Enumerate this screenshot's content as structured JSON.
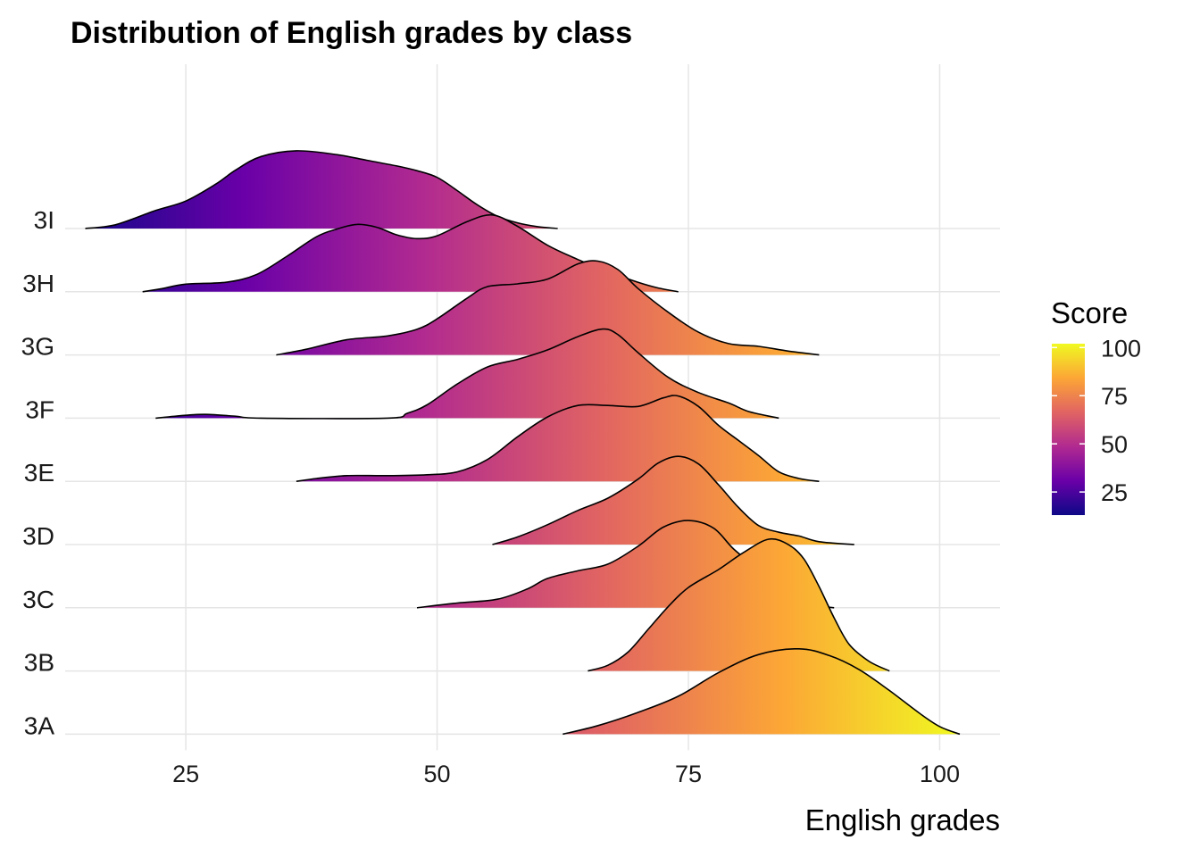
{
  "chart_data": {
    "type": "ridgeline",
    "title": "Distribution of English grades by class",
    "xlabel": "English grades",
    "ylabel": "",
    "xlim": [
      13,
      106
    ],
    "x_ticks": [
      25,
      50,
      75,
      100
    ],
    "x_tick_labels": [
      "25",
      "50",
      "75",
      "100"
    ],
    "categories": [
      "3I",
      "3H",
      "3G",
      "3F",
      "3E",
      "3D",
      "3C",
      "3B",
      "3A"
    ],
    "grid": true,
    "legend": {
      "title": "Score",
      "position": "right",
      "ticks": [
        25,
        50,
        75,
        100
      ],
      "tick_labels": [
        "25",
        "50",
        "75",
        "100"
      ],
      "range": [
        13,
        102
      ]
    },
    "color_scale": {
      "name": "plasma",
      "min": 13,
      "max": 102,
      "stops": [
        "#0d0887",
        "#6a00a8",
        "#b12a90",
        "#e16462",
        "#fca636",
        "#f0f921"
      ]
    },
    "ridge_height_scale": 3.9,
    "series": [
      {
        "name": "3I",
        "points": [
          [
            15.0,
            0.0
          ],
          [
            18.0,
            0.04
          ],
          [
            22.0,
            0.19
          ],
          [
            25.0,
            0.29
          ],
          [
            28.0,
            0.47
          ],
          [
            30.0,
            0.62
          ],
          [
            32.5,
            0.76
          ],
          [
            36.0,
            0.82
          ],
          [
            40.0,
            0.78
          ],
          [
            43.0,
            0.72
          ],
          [
            46.0,
            0.66
          ],
          [
            48.0,
            0.61
          ],
          [
            50.0,
            0.54
          ],
          [
            52.0,
            0.4
          ],
          [
            54.0,
            0.25
          ],
          [
            56.0,
            0.13
          ],
          [
            58.0,
            0.06
          ],
          [
            60.0,
            0.02
          ],
          [
            62.0,
            0.0
          ]
        ]
      },
      {
        "name": "3H",
        "points": [
          [
            20.7,
            0.0
          ],
          [
            22.5,
            0.03
          ],
          [
            25.0,
            0.08
          ],
          [
            29.0,
            0.1
          ],
          [
            32.0,
            0.18
          ],
          [
            35.0,
            0.37
          ],
          [
            38.0,
            0.58
          ],
          [
            40.0,
            0.66
          ],
          [
            42.0,
            0.71
          ],
          [
            44.0,
            0.68
          ],
          [
            46.0,
            0.6
          ],
          [
            48.0,
            0.56
          ],
          [
            50.0,
            0.59
          ],
          [
            53.0,
            0.74
          ],
          [
            55.5,
            0.81
          ],
          [
            58.0,
            0.69
          ],
          [
            61.0,
            0.49
          ],
          [
            64.0,
            0.34
          ],
          [
            67.0,
            0.21
          ],
          [
            70.0,
            0.1
          ],
          [
            72.0,
            0.04
          ],
          [
            74.0,
            0.0
          ]
        ]
      },
      {
        "name": "3G",
        "points": [
          [
            34.0,
            0.0
          ],
          [
            37.0,
            0.06
          ],
          [
            41.0,
            0.16
          ],
          [
            45.0,
            0.2
          ],
          [
            48.0,
            0.27
          ],
          [
            50.0,
            0.38
          ],
          [
            53.0,
            0.6
          ],
          [
            55.0,
            0.72
          ],
          [
            58.0,
            0.75
          ],
          [
            61.0,
            0.8
          ],
          [
            64.0,
            0.96
          ],
          [
            66.0,
            0.99
          ],
          [
            68.0,
            0.9
          ],
          [
            70.0,
            0.7
          ],
          [
            73.0,
            0.45
          ],
          [
            76.0,
            0.24
          ],
          [
            79.0,
            0.12
          ],
          [
            82.0,
            0.09
          ],
          [
            85.0,
            0.04
          ],
          [
            88.0,
            0.0
          ]
        ]
      },
      {
        "name": "3F",
        "points": [
          [
            22.0,
            0.0
          ],
          [
            25.0,
            0.03
          ],
          [
            27.0,
            0.04
          ],
          [
            30.0,
            0.02
          ],
          [
            32.5,
            0.0
          ],
          [
            45.0,
            0.0
          ],
          [
            47.0,
            0.05
          ],
          [
            49.0,
            0.14
          ],
          [
            52.0,
            0.36
          ],
          [
            55.0,
            0.54
          ],
          [
            58.0,
            0.62
          ],
          [
            61.0,
            0.72
          ],
          [
            64.0,
            0.86
          ],
          [
            66.5,
            0.94
          ],
          [
            68.0,
            0.88
          ],
          [
            70.0,
            0.69
          ],
          [
            73.0,
            0.43
          ],
          [
            76.0,
            0.27
          ],
          [
            79.0,
            0.16
          ],
          [
            81.0,
            0.07
          ],
          [
            84.0,
            0.0
          ]
        ]
      },
      {
        "name": "3E",
        "points": [
          [
            36.0,
            0.0
          ],
          [
            38.0,
            0.03
          ],
          [
            41.0,
            0.06
          ],
          [
            45.0,
            0.06
          ],
          [
            49.0,
            0.07
          ],
          [
            52.0,
            0.1
          ],
          [
            55.0,
            0.23
          ],
          [
            58.0,
            0.47
          ],
          [
            61.0,
            0.68
          ],
          [
            64.0,
            0.8
          ],
          [
            67.0,
            0.8
          ],
          [
            70.0,
            0.79
          ],
          [
            72.5,
            0.88
          ],
          [
            74.0,
            0.9
          ],
          [
            76.0,
            0.79
          ],
          [
            78.0,
            0.59
          ],
          [
            80.0,
            0.43
          ],
          [
            82.0,
            0.27
          ],
          [
            84.0,
            0.1
          ],
          [
            86.0,
            0.03
          ],
          [
            88.0,
            0.0
          ]
        ]
      },
      {
        "name": "3D",
        "points": [
          [
            55.5,
            0.0
          ],
          [
            58.0,
            0.08
          ],
          [
            61.0,
            0.21
          ],
          [
            64.0,
            0.36
          ],
          [
            67.0,
            0.49
          ],
          [
            70.0,
            0.69
          ],
          [
            72.0,
            0.86
          ],
          [
            74.0,
            0.93
          ],
          [
            76.0,
            0.85
          ],
          [
            78.0,
            0.63
          ],
          [
            80.0,
            0.39
          ],
          [
            82.0,
            0.2
          ],
          [
            84.0,
            0.13
          ],
          [
            86.0,
            0.09
          ],
          [
            88.0,
            0.03
          ],
          [
            91.5,
            0.0
          ]
        ]
      },
      {
        "name": "3C",
        "points": [
          [
            48.0,
            0.0
          ],
          [
            52.0,
            0.05
          ],
          [
            56.0,
            0.09
          ],
          [
            59.0,
            0.2
          ],
          [
            61.0,
            0.31
          ],
          [
            64.0,
            0.39
          ],
          [
            67.0,
            0.46
          ],
          [
            70.0,
            0.65
          ],
          [
            72.5,
            0.85
          ],
          [
            75.0,
            0.92
          ],
          [
            77.5,
            0.84
          ],
          [
            79.5,
            0.62
          ],
          [
            82.0,
            0.4
          ],
          [
            84.0,
            0.21
          ],
          [
            86.0,
            0.08
          ],
          [
            88.0,
            0.02
          ],
          [
            89.5,
            0.0
          ]
        ]
      },
      {
        "name": "3B",
        "points": [
          [
            65.0,
            0.0
          ],
          [
            67.0,
            0.06
          ],
          [
            69.0,
            0.2
          ],
          [
            71.0,
            0.44
          ],
          [
            73.0,
            0.68
          ],
          [
            75.0,
            0.88
          ],
          [
            78.0,
            1.07
          ],
          [
            80.5,
            1.25
          ],
          [
            83.0,
            1.39
          ],
          [
            85.0,
            1.33
          ],
          [
            86.5,
            1.18
          ],
          [
            88.0,
            0.89
          ],
          [
            89.5,
            0.56
          ],
          [
            91.0,
            0.28
          ],
          [
            93.0,
            0.1
          ],
          [
            95.0,
            0.0
          ]
        ]
      },
      {
        "name": "3A",
        "points": [
          [
            62.5,
            0.0
          ],
          [
            66.0,
            0.09
          ],
          [
            70.0,
            0.23
          ],
          [
            74.0,
            0.4
          ],
          [
            78.0,
            0.65
          ],
          [
            82.0,
            0.84
          ],
          [
            86.0,
            0.9
          ],
          [
            89.0,
            0.83
          ],
          [
            92.0,
            0.68
          ],
          [
            95.0,
            0.46
          ],
          [
            98.0,
            0.22
          ],
          [
            100.0,
            0.08
          ],
          [
            102.0,
            0.0
          ]
        ]
      }
    ]
  }
}
